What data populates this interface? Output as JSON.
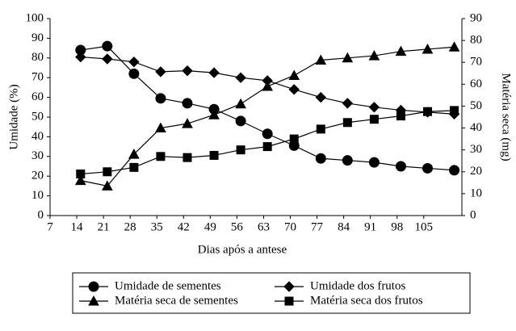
{
  "chart_data": {
    "type": "line",
    "xlabel": "Dias após a antese",
    "ylabel": "Umidade (%)",
    "y2label": "Matéria seca (mg)",
    "x": [
      15,
      22,
      29,
      36,
      43,
      50,
      57,
      64,
      71,
      78,
      85,
      92,
      99,
      106,
      113
    ],
    "xlim": [
      7,
      115
    ],
    "xticks": [
      7,
      14,
      21,
      28,
      35,
      42,
      49,
      56,
      63,
      70,
      77,
      84,
      91,
      98,
      105
    ],
    "ylim": [
      0,
      100
    ],
    "yticks": [
      0,
      10,
      20,
      30,
      40,
      50,
      60,
      70,
      80,
      90,
      100
    ],
    "y2lim": [
      0,
      90
    ],
    "y2ticks": [
      0,
      10,
      20,
      30,
      40,
      50,
      60,
      70,
      80,
      90
    ],
    "series": [
      {
        "name": "Umidade de sementes",
        "color": "#000000",
        "marker": "circle",
        "values": [
          84,
          86,
          72,
          59.5,
          57,
          54,
          48,
          41.5,
          35.5,
          29,
          28,
          27,
          25,
          24,
          23
        ]
      },
      {
        "name": "Umidade dos frutos",
        "color": "#000000",
        "marker": "diamond",
        "values": [
          80.5,
          79.5,
          78,
          73,
          73.5,
          72.5,
          70,
          68.5,
          64,
          60,
          57,
          55,
          53.5,
          52.5,
          51.5
        ]
      },
      {
        "name": "Matéria seca de sementes",
        "color": "#000000",
        "marker": "triangle",
        "axis": "y2",
        "values": [
          16,
          13.5,
          28,
          40,
          42,
          46,
          51,
          59,
          64,
          71,
          72,
          73,
          75,
          76,
          77
        ]
      },
      {
        "name": "Matéria seca dos frutos",
        "color": "#000000",
        "marker": "square",
        "axis": "y2",
        "values": [
          19,
          20,
          22,
          27,
          26.5,
          27.5,
          30,
          31.5,
          35,
          39.5,
          42.5,
          44,
          45.5,
          47.5,
          48
        ]
      }
    ]
  }
}
